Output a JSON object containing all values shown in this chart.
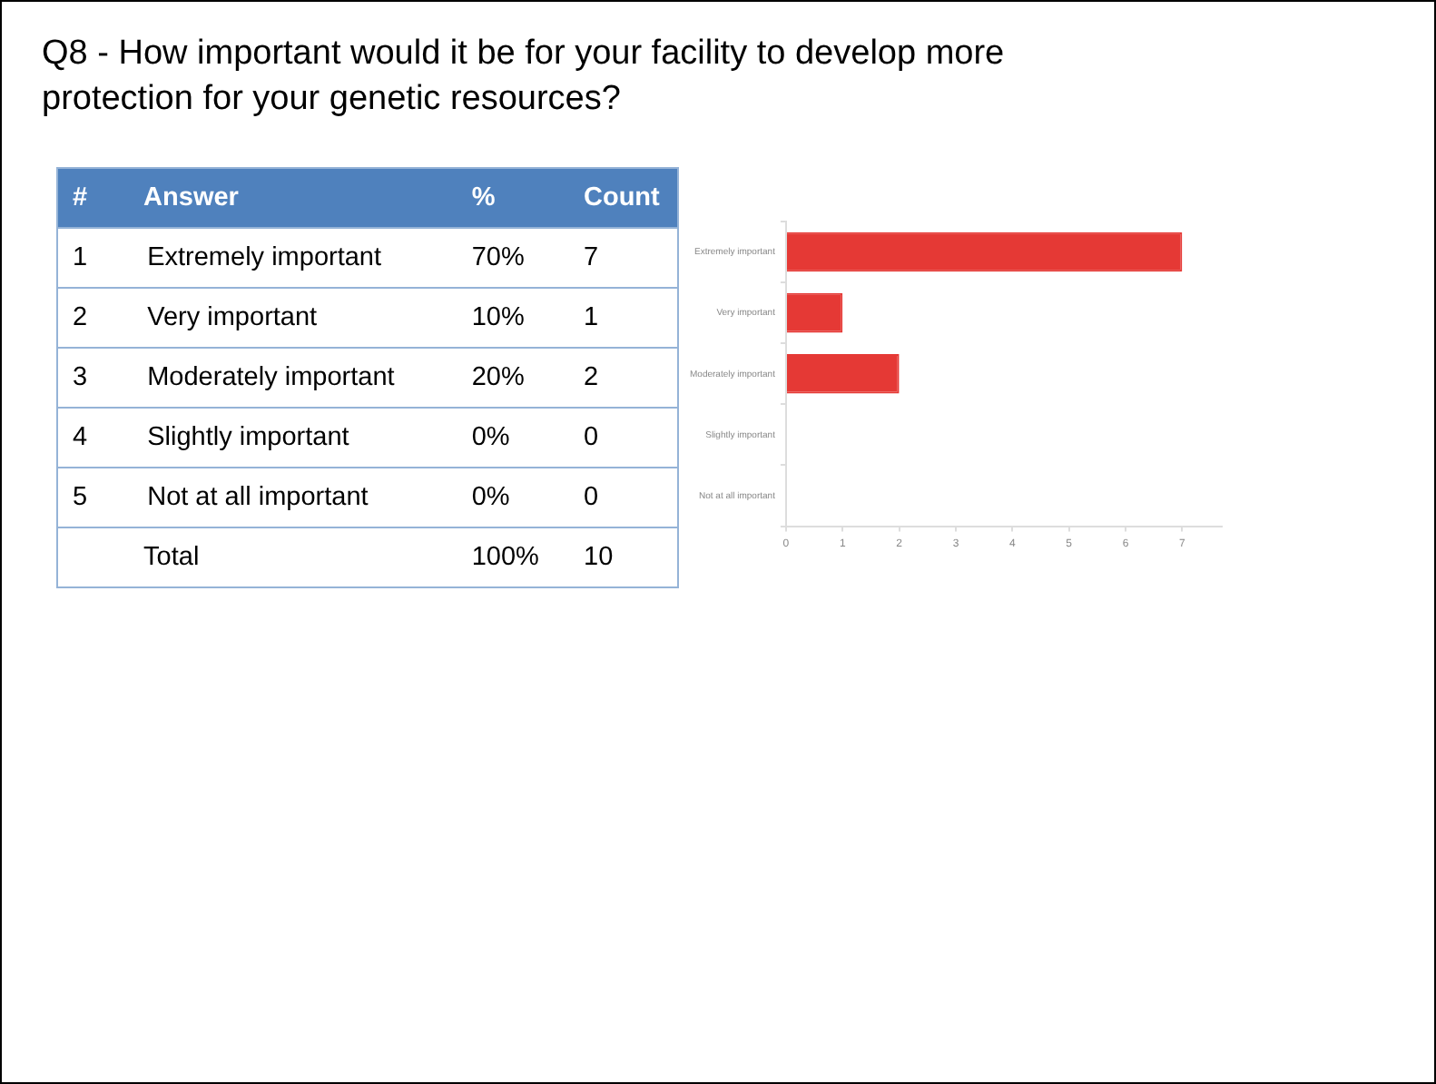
{
  "chart_data": [
    {
      "type": "other",
      "title": "Q8 - How important would it be for your facility to develop more protection for your genetic resources?",
      "annotations": [
        "#",
        "Answer",
        "%",
        "Count",
        "1 Extremely important",
        "70%",
        "7",
        "2 Very important",
        "10%",
        "1",
        "3 Moderately important",
        "20%",
        "2",
        "4 Slightly important",
        "0%",
        "0",
        "5 Not at all important",
        "0%",
        "0",
        "Total",
        "100%",
        "10"
      ]
    },
    {
      "type": "bar",
      "orientation": "horizontal",
      "categories": [
        "Extremely important",
        "Very important",
        "Moderately important",
        "Slightly important",
        "Not at all important"
      ],
      "values": [
        7,
        1,
        2,
        0,
        0
      ],
      "color": "#e53935",
      "xlim": [
        0,
        7.7
      ],
      "xticks": [
        0,
        1,
        2,
        3,
        4,
        5,
        6,
        7
      ]
    }
  ]
}
